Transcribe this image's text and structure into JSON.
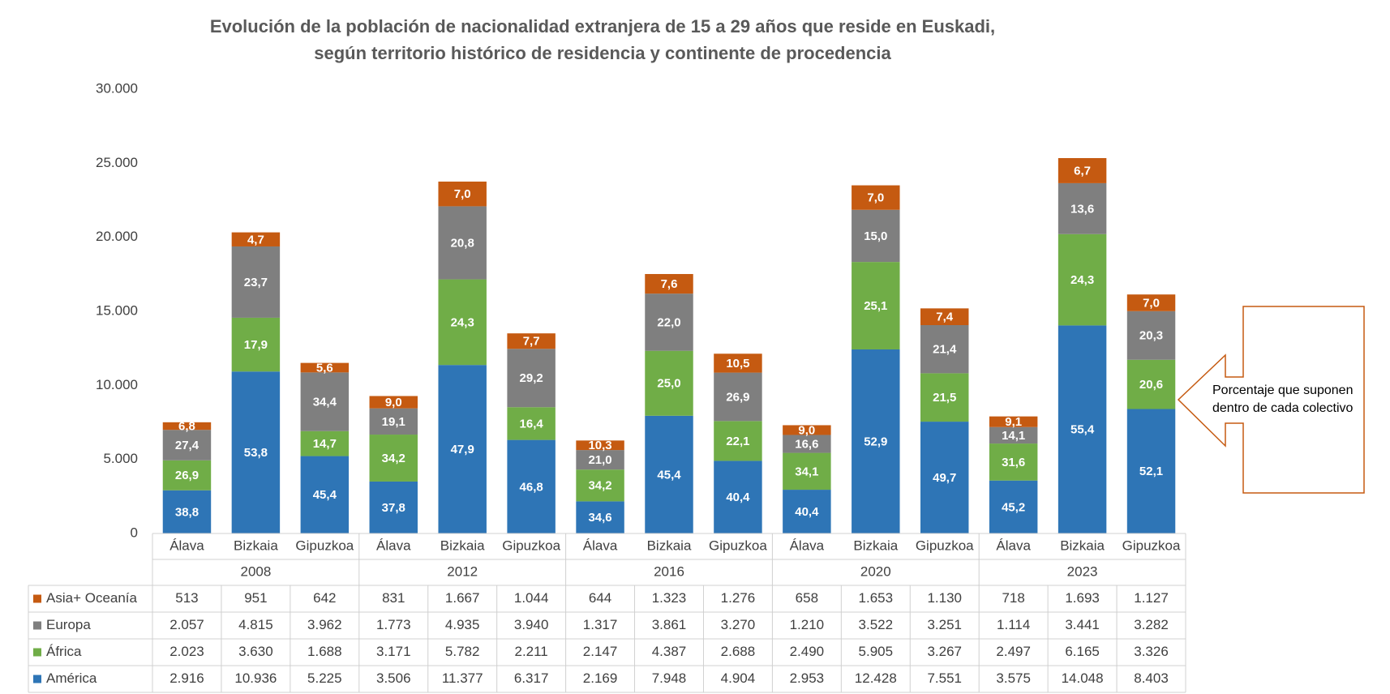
{
  "chart_data": {
    "type": "stacked-bar",
    "title": [
      "Evolución de la población de nacionalidad extranjera de 15 a 29 años que reside en Euskadi,",
      "según territorio histórico de residencia y continente de procedencia"
    ],
    "categories": [
      "Álava",
      "Bizkaia",
      "Gipuzkoa",
      "Álava",
      "Bizkaia",
      "Gipuzkoa",
      "Álava",
      "Bizkaia",
      "Gipuzkoa",
      "Álava",
      "Bizkaia",
      "Gipuzkoa",
      "Álava",
      "Bizkaia",
      "Gipuzkoa"
    ],
    "groups": [
      "2008",
      "2012",
      "2016",
      "2020",
      "2023"
    ],
    "ylim": [
      0,
      30000
    ],
    "yticks": [
      0,
      {
        "value": 5000,
        "label": "5.000"
      },
      {
        "value": 10000,
        "label": "10.000"
      },
      {
        "value": 15000,
        "label": "15.000"
      },
      {
        "value": 20000,
        "label": "20.000"
      },
      {
        "value": 25000,
        "label": "25.000"
      },
      {
        "value": 30000,
        "label": "30.000"
      }
    ],
    "grid": false,
    "annotation": [
      "Porcentaje que suponen",
      "dentro de cada colectivo"
    ],
    "series": [
      {
        "name": "América",
        "color": "#2e75b6",
        "values": [
          2916,
          10936,
          5225,
          3506,
          11377,
          6317,
          2169,
          7948,
          4904,
          2953,
          12428,
          7551,
          3575,
          14048,
          8403
        ],
        "value_labels": [
          "2.916",
          "10.936",
          "5.225",
          "3.506",
          "11.377",
          "6.317",
          "2.169",
          "7.948",
          "4.904",
          "2.953",
          "12.428",
          "7.551",
          "3.575",
          "14.048",
          "8.403"
        ],
        "percentages": [
          {
            "value": 38.8,
            "label": "38,8"
          },
          {
            "value": 53.8,
            "label": "53,8"
          },
          {
            "value": 45.4,
            "label": "45,4"
          },
          {
            "value": 37.8,
            "label": "37,8"
          },
          {
            "value": 47.9,
            "label": "47,9"
          },
          {
            "value": 46.8,
            "label": "46,8"
          },
          {
            "value": 34.6,
            "label": "34,6"
          },
          {
            "value": 45.4,
            "label": "45,4"
          },
          {
            "value": 40.4,
            "label": "40,4"
          },
          {
            "value": 40.4,
            "label": "40,4"
          },
          {
            "value": 52.9,
            "label": "52,9"
          },
          {
            "value": 49.7,
            "label": "49,7"
          },
          {
            "value": 45.2,
            "label": "45,2"
          },
          {
            "value": 55.4,
            "label": "55,4"
          },
          {
            "value": 52.1,
            "label": "52,1"
          }
        ]
      },
      {
        "name": "África",
        "color": "#70ad47",
        "values": [
          2023,
          3630,
          1688,
          3171,
          5782,
          2211,
          2147,
          4387,
          2688,
          2490,
          5905,
          3267,
          2497,
          6165,
          3326
        ],
        "value_labels": [
          "2.023",
          "3.630",
          "1.688",
          "3.171",
          "5.782",
          "2.211",
          "2.147",
          "4.387",
          "2.688",
          "2.490",
          "5.905",
          "3.267",
          "2.497",
          "6.165",
          "3.326"
        ],
        "percentages": [
          {
            "value": 26.9,
            "label": "26,9"
          },
          {
            "value": 17.9,
            "label": "17,9"
          },
          {
            "value": 14.7,
            "label": "14,7"
          },
          {
            "value": 34.2,
            "label": "34,2"
          },
          {
            "value": 24.3,
            "label": "24,3"
          },
          {
            "value": 16.4,
            "label": "16,4"
          },
          {
            "value": 34.2,
            "label": "34,2"
          },
          {
            "value": 25,
            "label": "25,0"
          },
          {
            "value": 22.1,
            "label": "22,1"
          },
          {
            "value": 34.1,
            "label": "34,1"
          },
          {
            "value": 25.1,
            "label": "25,1"
          },
          {
            "value": 21.5,
            "label": "21,5"
          },
          {
            "value": 31.6,
            "label": "31,6"
          },
          {
            "value": 24.3,
            "label": "24,3"
          },
          {
            "value": 20.6,
            "label": "20,6"
          }
        ]
      },
      {
        "name": "Europa",
        "color": "#7f7f7f",
        "values": [
          2057,
          4815,
          3962,
          1773,
          4935,
          3940,
          1317,
          3861,
          3270,
          1210,
          3522,
          3251,
          1114,
          3441,
          3282
        ],
        "value_labels": [
          "2.057",
          "4.815",
          "3.962",
          "1.773",
          "4.935",
          "3.940",
          "1.317",
          "3.861",
          "3.270",
          "1.210",
          "3.522",
          "3.251",
          "1.114",
          "3.441",
          "3.282"
        ],
        "percentages": [
          {
            "value": 27.4,
            "label": "27,4"
          },
          {
            "value": 23.7,
            "label": "23,7"
          },
          {
            "value": 34.4,
            "label": "34,4"
          },
          {
            "value": 19.1,
            "label": "19,1"
          },
          {
            "value": 20.8,
            "label": "20,8"
          },
          {
            "value": 29.2,
            "label": "29,2"
          },
          {
            "value": 21,
            "label": "21,0"
          },
          {
            "value": 22,
            "label": "22,0"
          },
          {
            "value": 26.9,
            "label": "26,9"
          },
          {
            "value": 16.6,
            "label": "16,6"
          },
          {
            "value": 15,
            "label": "15,0"
          },
          {
            "value": 21.4,
            "label": "21,4"
          },
          {
            "value": 14.1,
            "label": "14,1"
          },
          {
            "value": 13.6,
            "label": "13,6"
          },
          {
            "value": 20.3,
            "label": "20,3"
          }
        ]
      },
      {
        "name": "Asia+ Oceanía",
        "color": "#c55a11",
        "values": [
          513,
          951,
          642,
          831,
          1667,
          1044,
          644,
          1323,
          1276,
          658,
          1653,
          1130,
          718,
          1693,
          1127
        ],
        "value_labels": [
          "513",
          "951",
          "642",
          "831",
          "1.667",
          "1.044",
          "644",
          "1.323",
          "1.276",
          "658",
          "1.653",
          "1.130",
          "718",
          "1.693",
          "1.127"
        ],
        "percentages": [
          {
            "value": 6.8,
            "label": "6,8"
          },
          {
            "value": 4.7,
            "label": "4,7"
          },
          {
            "value": 5.6,
            "label": "5,6"
          },
          {
            "value": 9,
            "label": "9,0"
          },
          {
            "value": 7,
            "label": "7,0"
          },
          {
            "value": 7.7,
            "label": "7,7"
          },
          {
            "value": 10.3,
            "label": "10,3"
          },
          {
            "value": 7.6,
            "label": "7,6"
          },
          {
            "value": 10.5,
            "label": "10,5"
          },
          {
            "value": 9,
            "label": "9,0"
          },
          {
            "value": 7,
            "label": "7,0"
          },
          {
            "value": 7.4,
            "label": "7,4"
          },
          {
            "value": 9.1,
            "label": "9,1"
          },
          {
            "value": 6.7,
            "label": "6,7"
          },
          {
            "value": 7,
            "label": "7,0"
          }
        ]
      }
    ]
  }
}
